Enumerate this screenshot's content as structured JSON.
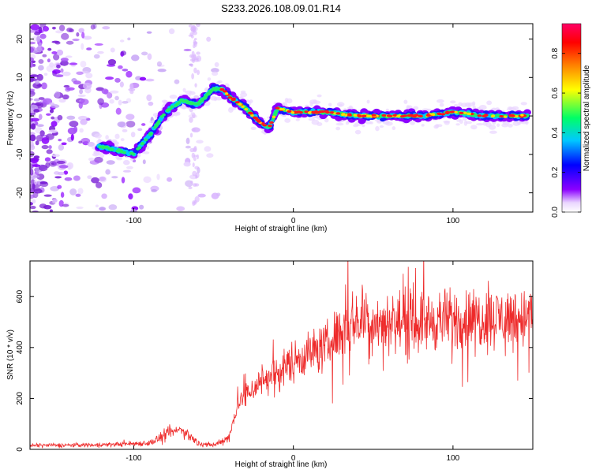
{
  "title": "S233.2026.108.09.01.R14",
  "chart_data": [
    {
      "type": "heatmap",
      "xlabel": "Height of straight line (km)",
      "ylabel": "Frequency (Hz)",
      "xlim": [
        -165,
        150
      ],
      "ylim": [
        -25,
        24
      ],
      "xticks": [
        -100,
        0,
        100
      ],
      "yticks": [
        -20,
        -10,
        0,
        10,
        20
      ],
      "colorbar": {
        "label": "Normalized spectral amplitude",
        "range": [
          0.0,
          0.95
        ],
        "ticks": [
          0.0,
          0.2,
          0.4,
          0.6,
          0.8
        ],
        "colors": [
          "#ffffff",
          "#d8b4fe",
          "#8b00ff",
          "#0000ff",
          "#00c8ff",
          "#00ff66",
          "#ffff00",
          "#ff8000",
          "#ff0000",
          "#ff0066"
        ]
      },
      "ridge": {
        "x": [
          -120,
          -110,
          -100,
          -90,
          -80,
          -70,
          -60,
          -50,
          -45,
          -40,
          -30,
          -20,
          -15,
          -10,
          0,
          20,
          40,
          60,
          80,
          100,
          120,
          145
        ],
        "y": [
          -8,
          -9,
          -10,
          -5,
          1,
          4,
          3,
          7,
          7,
          5,
          2,
          -2,
          -3,
          2,
          1,
          1,
          0,
          0,
          0,
          1,
          0,
          0
        ]
      }
    },
    {
      "type": "line",
      "xlabel": "Height of straight line (km)",
      "ylabel": "SNR (10 * v/v)",
      "xlim": [
        -165,
        150
      ],
      "ylim": [
        0,
        740
      ],
      "xticks": [
        -100,
        0,
        100
      ],
      "yticks": [
        0,
        200,
        400,
        600
      ],
      "color": "#ee2a2a",
      "envelope": {
        "x": [
          -165,
          -120,
          -90,
          -75,
          -70,
          -60,
          -50,
          -40,
          -35,
          -20,
          -10,
          0,
          10,
          20,
          30,
          40,
          60,
          80,
          100,
          120,
          150
        ],
        "y": [
          15,
          18,
          25,
          70,
          80,
          25,
          15,
          50,
          180,
          270,
          300,
          350,
          380,
          400,
          470,
          510,
          500,
          500,
          510,
          515,
          520
        ]
      }
    }
  ]
}
